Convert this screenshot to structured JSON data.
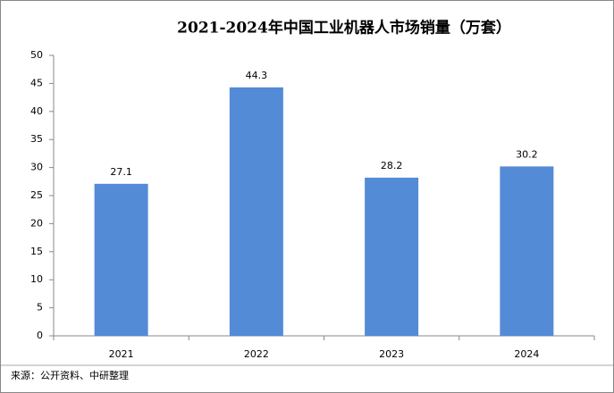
{
  "chart_data": {
    "type": "bar",
    "title": "2021-2024年中国工业机器人市场销量（万套）",
    "categories": [
      "2021",
      "2022",
      "2023",
      "2024"
    ],
    "values": [
      27.1,
      44.3,
      28.2,
      30.2
    ],
    "color": "#538bd6",
    "ylim": [
      0,
      50
    ],
    "yticks": [
      0,
      5,
      10,
      15,
      20,
      25,
      30,
      35,
      40,
      45,
      50
    ],
    "grid": false,
    "source": "来源：公开资料、中研整理"
  }
}
